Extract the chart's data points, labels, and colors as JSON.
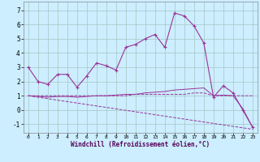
{
  "xlabel": "Windchill (Refroidissement éolien,°C)",
  "background_color": "#cceeff",
  "grid_color": "#aacccc",
  "line_color": "#993399",
  "xlim": [
    -0.5,
    23.5
  ],
  "ylim": [
    -1.6,
    7.6
  ],
  "yticks": [
    -1,
    0,
    1,
    2,
    3,
    4,
    5,
    6,
    7
  ],
  "xticks": [
    0,
    1,
    2,
    3,
    4,
    5,
    6,
    7,
    8,
    9,
    10,
    11,
    12,
    13,
    14,
    15,
    16,
    17,
    18,
    19,
    20,
    21,
    22,
    23
  ],
  "series1": {
    "x": [
      0,
      1,
      2,
      3,
      4,
      5,
      6,
      7,
      8,
      9,
      10,
      11,
      12,
      13,
      14,
      15,
      16,
      17,
      18,
      19,
      20,
      21,
      22,
      23
    ],
    "y": [
      3.0,
      2.0,
      1.8,
      2.5,
      2.5,
      1.6,
      2.4,
      3.3,
      3.1,
      2.8,
      4.4,
      4.6,
      5.0,
      5.3,
      4.4,
      6.8,
      6.6,
      5.9,
      4.7,
      0.9,
      1.7,
      1.2,
      0.0,
      -1.2
    ]
  },
  "series2": {
    "x": [
      0,
      1,
      2,
      3,
      4,
      5,
      6,
      7,
      8,
      9,
      10,
      11,
      12,
      13,
      14,
      15,
      16,
      17,
      18,
      19,
      20,
      21,
      22,
      23
    ],
    "y": [
      1.0,
      1.0,
      1.0,
      1.0,
      1.0,
      1.0,
      1.0,
      1.0,
      1.0,
      1.0,
      1.0,
      1.1,
      1.1,
      1.1,
      1.1,
      1.1,
      1.1,
      1.2,
      1.2,
      1.0,
      1.0,
      1.0,
      1.0,
      1.0
    ]
  },
  "series3": {
    "x": [
      0,
      1,
      2,
      3,
      4,
      5,
      6,
      7,
      8,
      9,
      10,
      11,
      12,
      13,
      14,
      15,
      16,
      17,
      18,
      19,
      20,
      21,
      22,
      23
    ],
    "y": [
      1.0,
      0.95,
      0.9,
      0.95,
      0.95,
      0.9,
      0.95,
      1.0,
      1.0,
      1.05,
      1.1,
      1.1,
      1.2,
      1.25,
      1.3,
      1.4,
      1.45,
      1.5,
      1.55,
      1.0,
      1.05,
      1.0,
      0.1,
      -1.2
    ]
  },
  "series4": {
    "x": [
      0,
      23
    ],
    "y": [
      1.0,
      -1.35
    ]
  }
}
